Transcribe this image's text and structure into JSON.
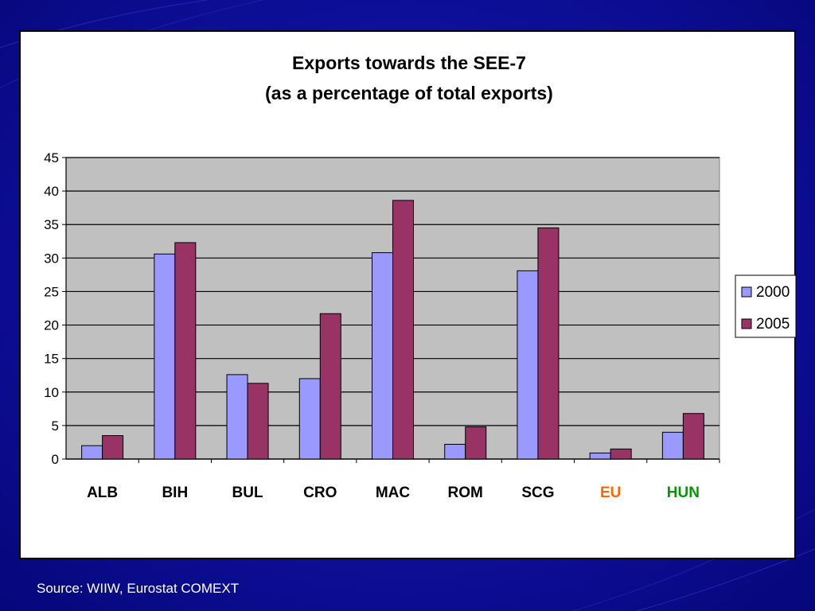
{
  "slide": {
    "source": "Source: WIIW, Eurostat COMEXT"
  },
  "chart_data": {
    "type": "bar",
    "title": "Exports towards the SEE-7",
    "subtitle": "(as a percentage of total exports)",
    "categories": [
      "ALB",
      "BIH",
      "BUL",
      "CRO",
      "MAC",
      "ROM",
      "SCG",
      "EU",
      "HUN"
    ],
    "category_colors": [
      "#000000",
      "#000000",
      "#000000",
      "#000000",
      "#000000",
      "#000000",
      "#000000",
      "#ff6600",
      "#009900"
    ],
    "series": [
      {
        "name": "2000",
        "color": "#9999ff",
        "values": [
          2,
          30.6,
          12.6,
          12,
          30.8,
          2.2,
          28.1,
          0.9,
          4
        ]
      },
      {
        "name": "2005",
        "color": "#993366",
        "values": [
          3.5,
          32.3,
          11.3,
          21.7,
          38.6,
          4.8,
          34.5,
          1.5,
          6.8
        ]
      }
    ],
    "ylim": [
      0,
      45
    ],
    "yticks": [
      0,
      5,
      10,
      15,
      20,
      25,
      30,
      35,
      40,
      45
    ],
    "grid": true,
    "plot_background": "#c0c0c0",
    "legend_position": "right"
  }
}
